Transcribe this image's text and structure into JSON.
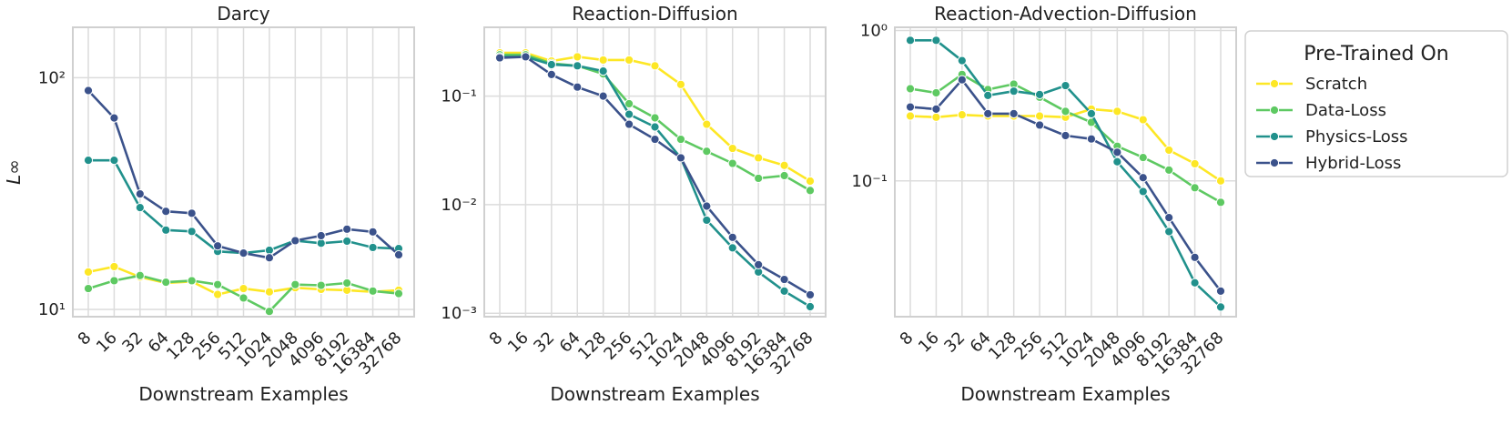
{
  "chart_data": {
    "type": "line",
    "x_tick_labels": [
      "8",
      "16",
      "32",
      "64",
      "128",
      "256",
      "512",
      "1024",
      "2048",
      "4096",
      "8192",
      "16384",
      "32768"
    ],
    "xlabel": "Downstream Examples",
    "legend": {
      "title": "Pre-Trained On",
      "placement": "right",
      "entries": [
        {
          "name": "Scratch",
          "color": "#fde725"
        },
        {
          "name": "Data-Loss",
          "color": "#5ec962"
        },
        {
          "name": "Physics-Loss",
          "color": "#21918c"
        },
        {
          "name": "Hybrid-Loss",
          "color": "#3b528b"
        }
      ]
    },
    "panels": [
      {
        "title": "Darcy",
        "ylabel": "L∞",
        "yscale": "log",
        "ylim": [
          9.3,
          165
        ],
        "y_ticks": [
          {
            "value": 10,
            "label": "10¹"
          },
          {
            "value": 100,
            "label": "10²"
          }
        ],
        "series": [
          {
            "name": "Scratch",
            "values": [
              14.5,
              15.3,
              13.8,
              13.0,
              13.2,
              11.6,
              12.3,
              11.9,
              12.4,
              12.2,
              12.1,
              11.9,
              12.1
            ]
          },
          {
            "name": "Data-Loss",
            "values": [
              12.3,
              13.3,
              14.0,
              13.1,
              13.3,
              12.8,
              11.2,
              9.8,
              12.8,
              12.7,
              13.0,
              12.0,
              11.7
            ]
          },
          {
            "name": "Physics-Loss",
            "values": [
              44,
              44,
              27.5,
              22,
              21.7,
              17.8,
              17.5,
              18,
              19.8,
              19.3,
              19.7,
              18.5,
              18.3
            ]
          },
          {
            "name": "Hybrid-Loss",
            "values": [
              88,
              67,
              31.5,
              26.5,
              26,
              18.8,
              17.5,
              16.7,
              19.8,
              20.8,
              22.2,
              21.6,
              17.2
            ]
          }
        ]
      },
      {
        "title": "Reaction-Diffusion",
        "ylabel": "",
        "yscale": "log",
        "ylim": [
          0.00093,
          0.43
        ],
        "y_ticks": [
          {
            "value": 0.001,
            "label": "10⁻³"
          },
          {
            "value": 0.01,
            "label": "10⁻²"
          },
          {
            "value": 0.1,
            "label": "10⁻¹"
          }
        ],
        "series": [
          {
            "name": "Scratch",
            "values": [
              0.25,
              0.25,
              0.21,
              0.23,
              0.215,
              0.215,
              0.19,
              0.128,
              0.055,
              0.033,
              0.027,
              0.023,
              0.0165
            ]
          },
          {
            "name": "Data-Loss",
            "values": [
              0.24,
              0.24,
              0.2,
              0.19,
              0.16,
              0.085,
              0.063,
              0.04,
              0.031,
              0.024,
              0.0175,
              0.0185,
              0.0135
            ]
          },
          {
            "name": "Physics-Loss",
            "values": [
              0.23,
              0.23,
              0.195,
              0.19,
              0.17,
              0.068,
              0.052,
              0.027,
              0.0072,
              0.004,
              0.0024,
              0.0016,
              0.00115
            ]
          },
          {
            "name": "Hybrid-Loss",
            "values": [
              0.225,
              0.23,
              0.158,
              0.121,
              0.1,
              0.055,
              0.04,
              0.027,
              0.0097,
              0.005,
              0.0028,
              0.00205,
              0.00148
            ]
          }
        ]
      },
      {
        "title": "Reaction-Advection-Diffusion",
        "ylabel": "",
        "yscale": "log",
        "ylim": [
          0.0125,
          1.05
        ],
        "y_ticks": [
          {
            "value": 0.1,
            "label": "10⁻¹"
          },
          {
            "value": 1.0,
            "label": "10⁰"
          }
        ],
        "series": [
          {
            "name": "Scratch",
            "values": [
              0.27,
              0.265,
              0.275,
              0.27,
              0.27,
              0.27,
              0.265,
              0.3,
              0.29,
              0.255,
              0.16,
              0.13,
              0.1
            ]
          },
          {
            "name": "Data-Loss",
            "values": [
              0.41,
              0.385,
              0.51,
              0.405,
              0.44,
              0.36,
              0.29,
              0.245,
              0.17,
              0.143,
              0.118,
              0.09,
              0.072
            ]
          },
          {
            "name": "Physics-Loss",
            "values": [
              0.86,
              0.86,
              0.63,
              0.37,
              0.395,
              0.375,
              0.43,
              0.28,
              0.134,
              0.085,
              0.046,
              0.021,
              0.0145
            ]
          },
          {
            "name": "Hybrid-Loss",
            "values": [
              0.31,
              0.3,
              0.47,
              0.28,
              0.28,
              0.235,
              0.2,
              0.19,
              0.155,
              0.105,
              0.057,
              0.031,
              0.0185
            ]
          }
        ]
      }
    ]
  }
}
